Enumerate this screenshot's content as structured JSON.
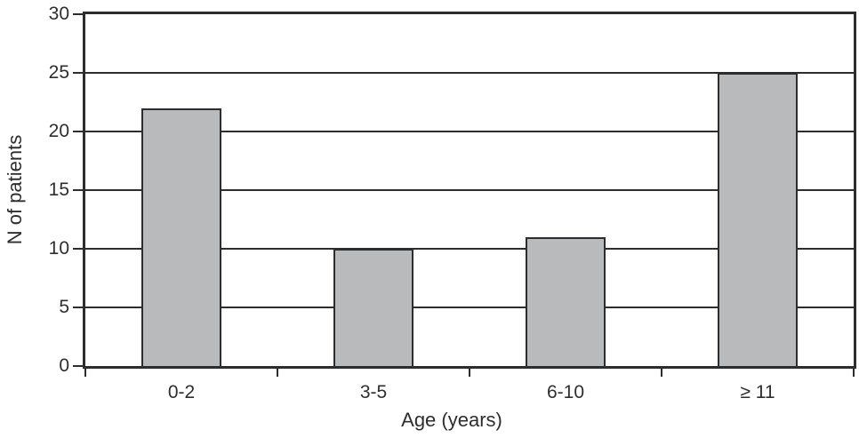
{
  "chart_data": {
    "type": "bar",
    "categories": [
      "0-2",
      "3-5",
      "6-10",
      "≥ 11"
    ],
    "values": [
      22,
      10,
      11,
      25
    ],
    "xlabel": "Age (years)",
    "ylabel": "N of patients",
    "ylim": [
      0,
      30
    ],
    "yticks": [
      0,
      5,
      10,
      15,
      20,
      25,
      30
    ],
    "grid": "horizontal",
    "legend_position": "none",
    "colors": {
      "bar_fill": "#b8babb",
      "bar_border": "#2d2d2d",
      "axis_line": "#2d2d2d",
      "grid_line": "#2d2d2d",
      "text": "#2e2e2e",
      "background": "#ffffff"
    }
  }
}
